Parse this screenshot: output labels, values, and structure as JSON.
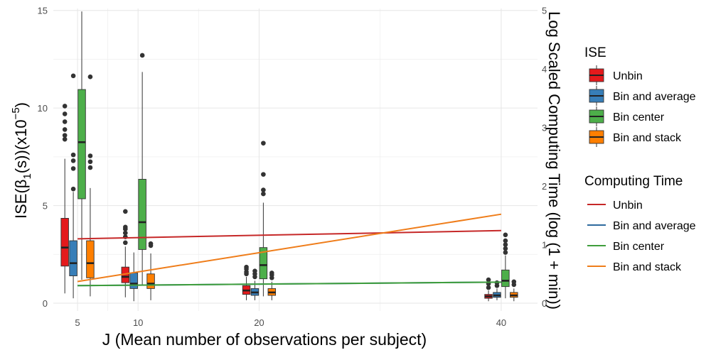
{
  "chart_data": {
    "type": "box",
    "xlabel": "J (Mean number of observations per subject)",
    "ylabel_left": {
      "pre": "ISE(β",
      "sub": "1",
      "mid": "(s))(x10",
      "sup": "−5",
      "post": ")"
    },
    "ylabel_right": "Log Scaled Computing Time (log (1 + min))",
    "x_ticks": [
      5,
      10,
      20,
      40
    ],
    "y_left_ticks": [
      0,
      5,
      10,
      15
    ],
    "y_right_ticks": [
      0,
      1,
      2,
      3,
      4,
      5
    ],
    "xlim": [
      3,
      43
    ],
    "ylim_left": [
      -0.4,
      15.1
    ],
    "ylim_right": [
      -0.133,
      5.033
    ],
    "grid": true,
    "legend_position": "right",
    "box_legend": {
      "title": "ISE",
      "items": [
        {
          "label": "Unbin",
          "color": "#e41a1c"
        },
        {
          "label": "Bin and average",
          "color": "#377eb8"
        },
        {
          "label": "Bin center",
          "color": "#4daf4a"
        },
        {
          "label": "Bin and stack",
          "color": "#ff7f00"
        }
      ]
    },
    "line_legend": {
      "title": "Computing Time",
      "items": [
        {
          "label": "Unbin",
          "color": "#c62828"
        },
        {
          "label": "Bin and average",
          "color": "#2e6a9e"
        },
        {
          "label": "Bin center",
          "color": "#3f9e3c"
        },
        {
          "label": "Bin and stack",
          "color": "#ef7d1a"
        }
      ]
    },
    "box_groups": [
      {
        "x": 5,
        "boxes": [
          {
            "series": "Unbin",
            "min": 0.5,
            "q1": 1.9,
            "median": 2.85,
            "q3": 4.35,
            "max": 7.4,
            "outliers": [
              8.4,
              8.6,
              8.9,
              9.3,
              9.7,
              10.1
            ]
          },
          {
            "series": "Bin and average",
            "min": 0.25,
            "q1": 1.4,
            "median": 2.05,
            "q3": 3.2,
            "max": 5.7,
            "outliers": [
              5.85,
              6.9,
              7.3,
              7.6,
              11.65
            ]
          },
          {
            "series": "Bin center",
            "min": 1.2,
            "q1": 5.35,
            "median": 8.25,
            "q3": 10.95,
            "max": 14.95,
            "outliers": []
          },
          {
            "series": "Bin and stack",
            "min": 0.35,
            "q1": 1.3,
            "median": 2.05,
            "q3": 3.2,
            "max": 5.9,
            "outliers": [
              6.95,
              7.25,
              7.55,
              11.6
            ]
          }
        ]
      },
      {
        "x": 10,
        "boxes": [
          {
            "series": "Unbin",
            "min": 0.3,
            "q1": 1.05,
            "median": 1.35,
            "q3": 1.85,
            "max": 2.9,
            "outliers": [
              3.1,
              3.4,
              3.6,
              3.8,
              3.9,
              4.7
            ]
          },
          {
            "series": "Bin and average",
            "min": 0.1,
            "q1": 0.75,
            "median": 1.0,
            "q3": 1.55,
            "max": 2.6,
            "outliers": []
          },
          {
            "series": "Bin center",
            "min": 0.9,
            "q1": 2.75,
            "median": 4.15,
            "q3": 6.35,
            "max": 11.85,
            "outliers": [
              12.7
            ]
          },
          {
            "series": "Bin and stack",
            "min": 0.15,
            "q1": 0.75,
            "median": 1.0,
            "q3": 1.5,
            "max": 2.55,
            "outliers": [
              2.95,
              3.05
            ]
          }
        ]
      },
      {
        "x": 20,
        "boxes": [
          {
            "series": "Unbin",
            "min": 0.15,
            "q1": 0.45,
            "median": 0.65,
            "q3": 0.9,
            "max": 1.35,
            "outliers": [
              1.5,
              1.6,
              1.75,
              1.85
            ]
          },
          {
            "series": "Bin and average",
            "min": 0.15,
            "q1": 0.4,
            "median": 0.55,
            "q3": 0.75,
            "max": 1.15,
            "outliers": [
              1.35,
              1.5,
              1.65
            ]
          },
          {
            "series": "Bin center",
            "min": 0.35,
            "q1": 1.25,
            "median": 1.95,
            "q3": 2.85,
            "max": 5.15,
            "outliers": [
              5.6,
              5.8,
              6.6,
              8.2
            ]
          },
          {
            "series": "Bin and stack",
            "min": 0.15,
            "q1": 0.4,
            "median": 0.55,
            "q3": 0.75,
            "max": 1.1,
            "outliers": [
              1.3,
              1.45,
              1.55
            ]
          }
        ]
      },
      {
        "x": 40,
        "boxes": [
          {
            "series": "Unbin",
            "min": 0.1,
            "q1": 0.25,
            "median": 0.35,
            "q3": 0.45,
            "max": 0.65,
            "outliers": [
              0.8,
              1.0,
              1.2
            ]
          },
          {
            "series": "Bin and average",
            "min": 0.15,
            "q1": 0.3,
            "median": 0.4,
            "q3": 0.55,
            "max": 0.75,
            "outliers": [
              0.9,
              1.05
            ]
          },
          {
            "series": "Bin center",
            "min": 0.25,
            "q1": 0.85,
            "median": 1.15,
            "q3": 1.7,
            "max": 2.45,
            "outliers": [
              2.6,
              2.8,
              3.0,
              3.2,
              3.5
            ]
          },
          {
            "series": "Bin and stack",
            "min": 0.1,
            "q1": 0.3,
            "median": 0.4,
            "q3": 0.55,
            "max": 0.75,
            "outliers": [
              0.95,
              1.1
            ]
          }
        ]
      }
    ],
    "box_offsets": [
      -1.05,
      -0.35,
      0.35,
      1.05
    ],
    "box_width": 0.62,
    "lines": [
      {
        "series": "Unbin",
        "x": [
          5,
          40
        ],
        "y": [
          1.1,
          1.24
        ]
      },
      {
        "series": "Bin and average",
        "x": [
          5,
          40
        ],
        "y": [
          0.3,
          0.36
        ]
      },
      {
        "series": "Bin center",
        "x": [
          5,
          40
        ],
        "y": [
          0.3,
          0.36
        ]
      },
      {
        "series": "Bin and stack",
        "x": [
          5,
          40
        ],
        "y": [
          0.37,
          1.52
        ]
      }
    ]
  }
}
